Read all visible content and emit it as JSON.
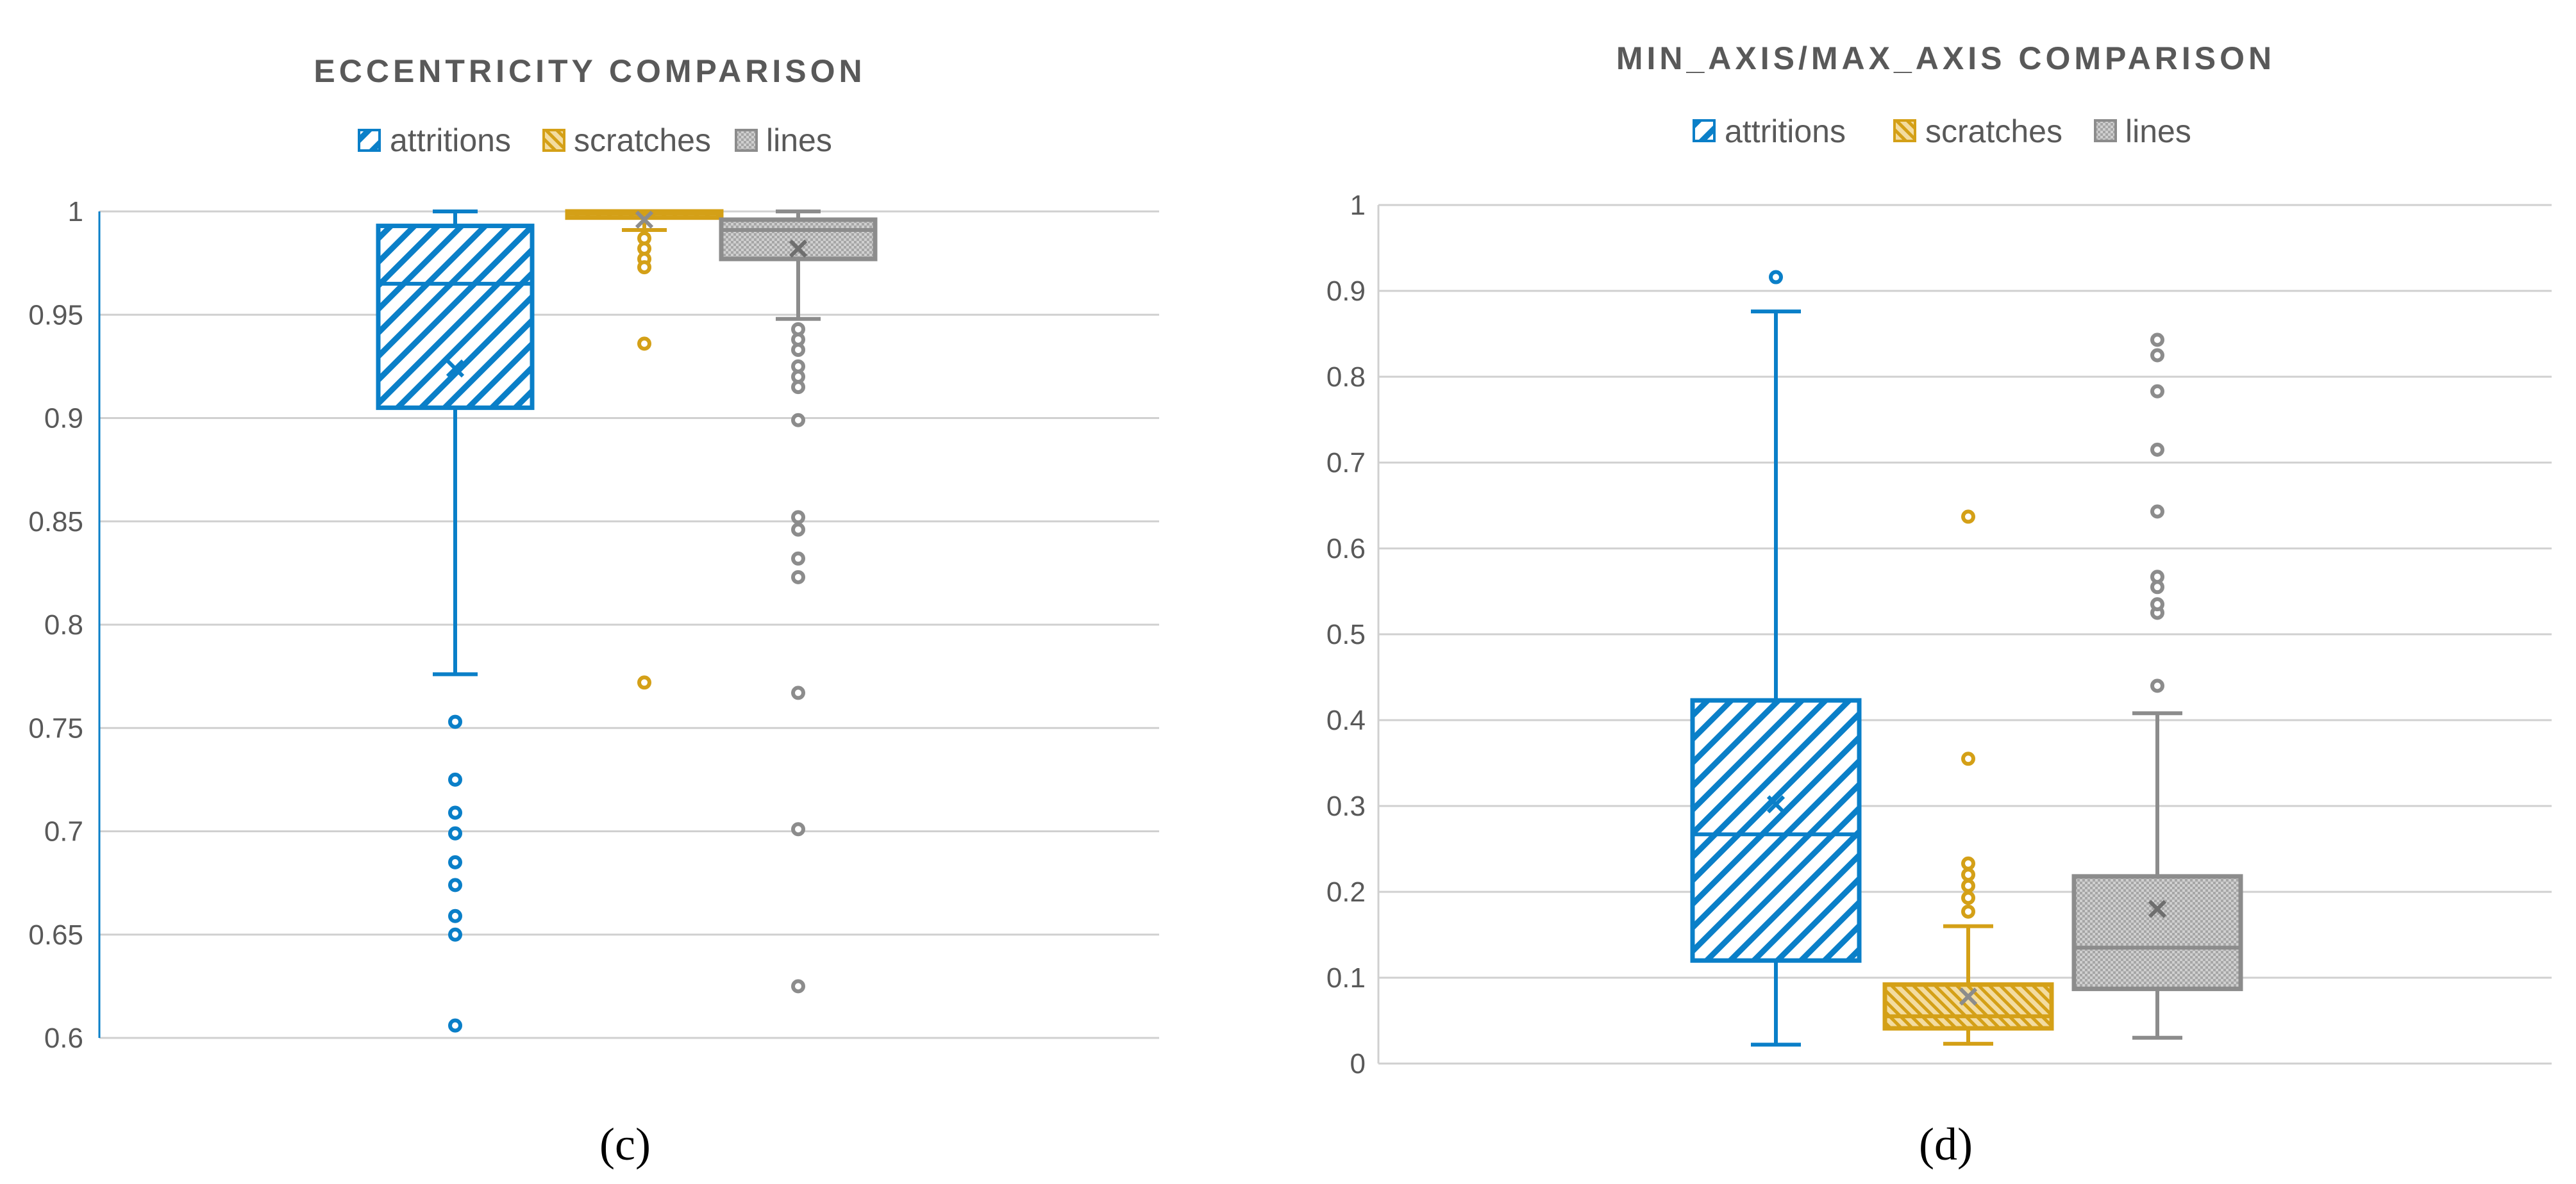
{
  "colors": {
    "attritions": "#0a7fc8",
    "scratches": "#d4a017",
    "lines": "#8c8c8c",
    "grid": "#d0d0d0",
    "text": "#595959"
  },
  "chart_data": [
    {
      "panel_label": "(c)",
      "type": "box",
      "title": "ECCENTRICITY COMPARISON",
      "legend_position": "top-center",
      "grid": true,
      "ylim": [
        0.6,
        1
      ],
      "yticks": [
        "0.6",
        "0.65",
        "0.7",
        "0.75",
        "0.8",
        "0.85",
        "0.9",
        "0.95",
        "1"
      ],
      "series": [
        {
          "name": "attritions",
          "whisker_low": 0.776,
          "q1": 0.905,
          "median": 0.965,
          "q3": 0.993,
          "whisker_high": 1.0,
          "mean": 0.924,
          "outliers": [
            0.753,
            0.725,
            0.709,
            0.699,
            0.685,
            0.674,
            0.659,
            0.65,
            0.606
          ]
        },
        {
          "name": "scratches",
          "whisker_low": 0.991,
          "q1": 0.997,
          "median": 0.999,
          "q3": 1.0,
          "whisker_high": 1.0,
          "mean": 0.996,
          "outliers": [
            0.987,
            0.982,
            0.977,
            0.973,
            0.936,
            0.772
          ]
        },
        {
          "name": "lines",
          "whisker_low": 0.948,
          "q1": 0.977,
          "median": 0.991,
          "q3": 0.996,
          "whisker_high": 1.0,
          "mean": 0.982,
          "outliers": [
            0.943,
            0.938,
            0.933,
            0.925,
            0.92,
            0.915,
            0.899,
            0.852,
            0.846,
            0.832,
            0.823,
            0.767,
            0.701,
            0.625
          ]
        }
      ]
    },
    {
      "panel_label": "(d)",
      "type": "box",
      "title": "MIN_AXIS/MAX_AXIS COMPARISON",
      "legend_position": "top-center",
      "grid": true,
      "ylim": [
        0,
        1
      ],
      "yticks": [
        "0",
        "0.1",
        "0.2",
        "0.3",
        "0.4",
        "0.5",
        "0.6",
        "0.7",
        "0.8",
        "0.9",
        "1"
      ],
      "series": [
        {
          "name": "attritions",
          "whisker_low": 0.022,
          "q1": 0.12,
          "median": 0.267,
          "q3": 0.423,
          "whisker_high": 0.876,
          "mean": 0.302,
          "outliers": [
            0.916
          ]
        },
        {
          "name": "scratches",
          "whisker_low": 0.023,
          "q1": 0.041,
          "median": 0.055,
          "q3": 0.092,
          "whisker_high": 0.16,
          "mean": 0.078,
          "outliers": [
            0.177,
            0.193,
            0.207,
            0.22,
            0.233,
            0.355,
            0.637
          ]
        },
        {
          "name": "lines",
          "whisker_low": 0.03,
          "q1": 0.087,
          "median": 0.135,
          "q3": 0.218,
          "whisker_high": 0.408,
          "mean": 0.18,
          "outliers": [
            0.44,
            0.525,
            0.535,
            0.555,
            0.567,
            0.643,
            0.715,
            0.783,
            0.825,
            0.843
          ]
        }
      ]
    }
  ]
}
